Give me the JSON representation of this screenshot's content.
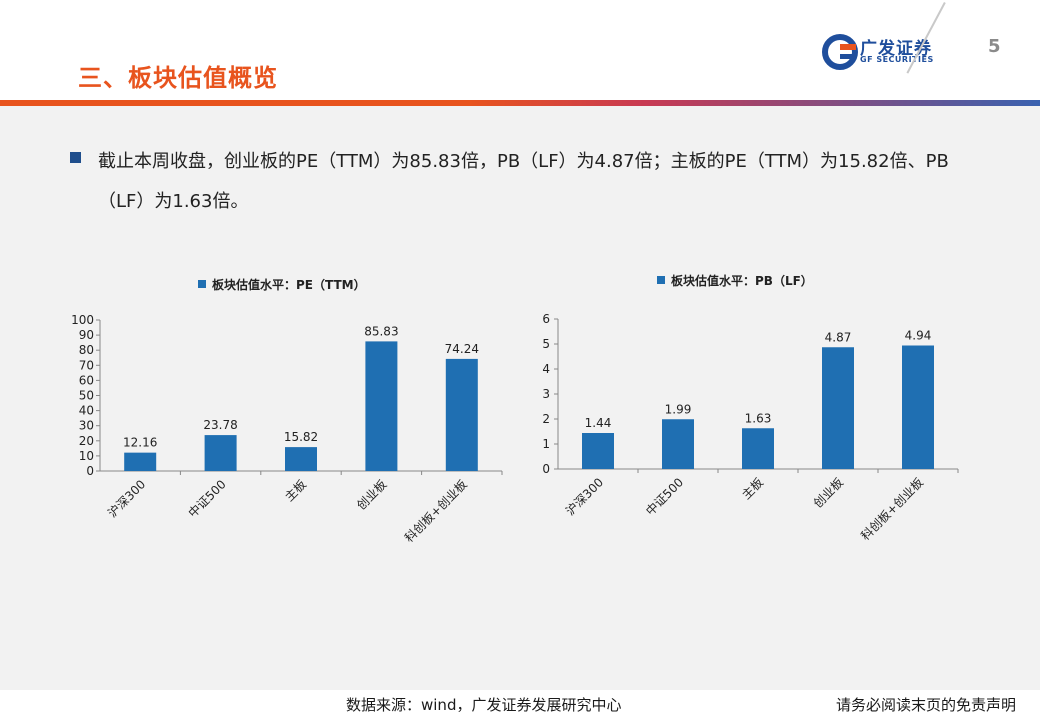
{
  "header": {
    "title": "三、板块估值概览",
    "logo_cn": "广发证券",
    "logo_en": "GF SECURITIES",
    "page_number": "5"
  },
  "body": {
    "text": "截止本周收盘，创业板的PE（TTM）为85.83倍，PB（LF）为4.87倍；主板的PE（TTM）为15.82倍、PB（LF）为1.63倍。"
  },
  "footer": {
    "source": "数据来源：wind，广发证券发展研究中心",
    "disclaimer": "请务必阅读末页的免责声明"
  },
  "colors": {
    "accent": "#e8541e",
    "bar": "#1f6fb2",
    "brand_blue": "#1f4e9c"
  },
  "chart_data": [
    {
      "type": "bar",
      "legend": "板块估值水平：PE（TTM）",
      "categories": [
        "沪深300",
        "中证500",
        "主板",
        "创业板",
        "科创板+创业板"
      ],
      "values": [
        12.16,
        23.78,
        15.82,
        85.83,
        74.24
      ],
      "value_labels": [
        "12.16",
        "23.78",
        "15.82",
        "85.83",
        "74.24"
      ],
      "ylim": [
        0,
        100
      ],
      "yticks": [
        0,
        10,
        20,
        30,
        40,
        50,
        60,
        70,
        80,
        90,
        100
      ],
      "legend_position": "top"
    },
    {
      "type": "bar",
      "legend": "板块估值水平：PB（LF）",
      "categories": [
        "沪深300",
        "中证500",
        "主板",
        "创业板",
        "科创板+创业板"
      ],
      "values": [
        1.44,
        1.99,
        1.63,
        4.87,
        4.94
      ],
      "value_labels": [
        "1.44",
        "1.99",
        "1.63",
        "4.87",
        "4.94"
      ],
      "ylim": [
        0,
        6
      ],
      "yticks": [
        0,
        1,
        2,
        3,
        4,
        5,
        6
      ],
      "legend_position": "top"
    }
  ]
}
